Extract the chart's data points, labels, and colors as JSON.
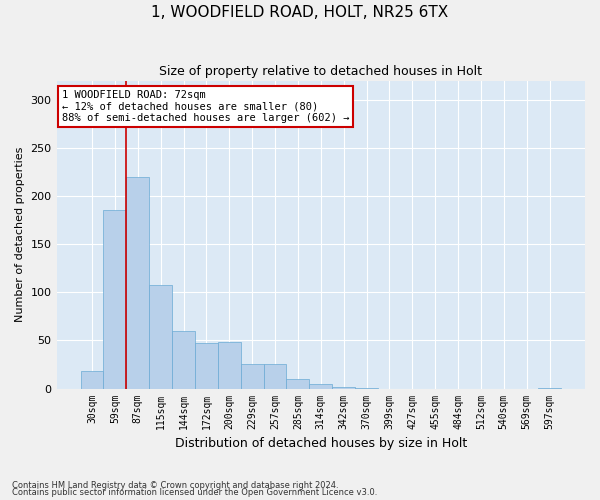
{
  "title1": "1, WOODFIELD ROAD, HOLT, NR25 6TX",
  "title2": "Size of property relative to detached houses in Holt",
  "xlabel": "Distribution of detached houses by size in Holt",
  "ylabel": "Number of detached properties",
  "footnote1": "Contains HM Land Registry data © Crown copyright and database right 2024.",
  "footnote2": "Contains public sector information licensed under the Open Government Licence v3.0.",
  "bar_labels": [
    "30sqm",
    "59sqm",
    "87sqm",
    "115sqm",
    "144sqm",
    "172sqm",
    "200sqm",
    "229sqm",
    "257sqm",
    "285sqm",
    "314sqm",
    "342sqm",
    "370sqm",
    "399sqm",
    "427sqm",
    "455sqm",
    "484sqm",
    "512sqm",
    "540sqm",
    "569sqm",
    "597sqm"
  ],
  "bar_values": [
    18,
    185,
    220,
    108,
    60,
    47,
    48,
    25,
    25,
    10,
    5,
    2,
    1,
    0,
    0,
    0,
    0,
    0,
    0,
    0,
    1
  ],
  "bar_color": "#b8d0ea",
  "bar_edgecolor": "#6aaad4",
  "property_line_x": 1.5,
  "property_line_color": "#cc0000",
  "ylim": [
    0,
    320
  ],
  "yticks": [
    0,
    50,
    100,
    150,
    200,
    250,
    300
  ],
  "annotation_text": "1 WOODFIELD ROAD: 72sqm\n← 12% of detached houses are smaller (80)\n88% of semi-detached houses are larger (602) →",
  "annotation_box_color": "#cc0000",
  "plot_bg_color": "#dce9f5",
  "fig_bg_color": "#f0f0f0",
  "grid_color": "#ffffff",
  "title1_fontsize": 11,
  "title2_fontsize": 9,
  "ylabel_fontsize": 8,
  "xlabel_fontsize": 9,
  "tick_fontsize": 7,
  "annotation_fontsize": 7.5,
  "footnote_fontsize": 6
}
